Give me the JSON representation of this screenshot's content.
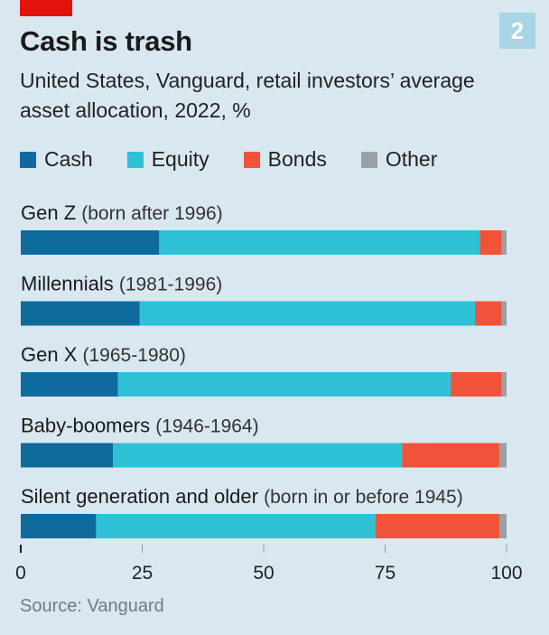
{
  "header": {
    "title": "Cash is trash",
    "badge": "2",
    "subtitle": "United States, Vanguard, retail investors’ average asset allocation, 2022, %"
  },
  "colors": {
    "background": "#d9e7f0",
    "brand_red": "#e3120b",
    "cash": "#0f6a9e",
    "equity": "#2ec1d6",
    "bonds": "#f0533a",
    "other": "#9aa0a4"
  },
  "legend": [
    {
      "label": "Cash",
      "color": "#0f6a9e"
    },
    {
      "label": "Equity",
      "color": "#2ec1d6"
    },
    {
      "label": "Bonds",
      "color": "#f0533a"
    },
    {
      "label": "Other",
      "color": "#9aa0a4"
    }
  ],
  "chart_data": {
    "type": "bar",
    "orientation": "horizontal",
    "stacked": true,
    "categories": [
      {
        "name": "Gen Z",
        "detail": "(born after 1996)"
      },
      {
        "name": "Millennials",
        "detail": "(1981-1996)"
      },
      {
        "name": "Gen X",
        "detail": "(1965-1980)"
      },
      {
        "name": "Baby-boomers",
        "detail": "(1946-1964)"
      },
      {
        "name": "Silent generation and older",
        "detail": "(born in or before 1945)"
      }
    ],
    "series": [
      {
        "name": "Cash",
        "values": [
          28.5,
          24.5,
          20,
          19,
          15.5
        ]
      },
      {
        "name": "Equity",
        "values": [
          66,
          69,
          68.5,
          59.5,
          57.5
        ]
      },
      {
        "name": "Bonds",
        "values": [
          4.5,
          5.5,
          10.5,
          20,
          25.5
        ]
      },
      {
        "name": "Other",
        "values": [
          1,
          1,
          1,
          1.5,
          1.5
        ]
      }
    ],
    "xlim": [
      0,
      100
    ],
    "xticks": [
      "0",
      "25",
      "50",
      "75",
      "100"
    ],
    "legend_position": "top"
  },
  "footer": {
    "source": "Source: Vanguard"
  }
}
